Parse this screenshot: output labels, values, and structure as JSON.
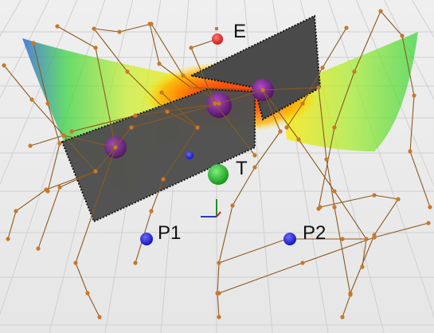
{
  "scene": {
    "type": "3d-visualization-viewport",
    "grid": true,
    "colors": {
      "background": "#ececec",
      "grid_line": "#cfcfcf",
      "wall": "#4a4a4a",
      "wall_edge": "#111111",
      "rope": "#8b5a1e",
      "joint": "#c9772a",
      "heat_high": "#ff2a00",
      "heat_mid": "#ffe800",
      "heat_low": "#35d43a",
      "heat_edge": "#1f5fd6",
      "purple_sphere": "#6a1f7f",
      "goal_sphere": "#19b51e"
    }
  },
  "markers": [
    {
      "id": "E",
      "label": "E",
      "color": "#e01b1b",
      "icon": "red-sphere"
    },
    {
      "id": "T",
      "label": "T",
      "color": "#19b51e",
      "icon": "green-sphere"
    },
    {
      "id": "P1",
      "label": "P1",
      "color": "#1414d8",
      "icon": "blue-sphere"
    },
    {
      "id": "P2",
      "label": "P2",
      "color": "#1414d8",
      "icon": "blue-sphere"
    }
  ]
}
